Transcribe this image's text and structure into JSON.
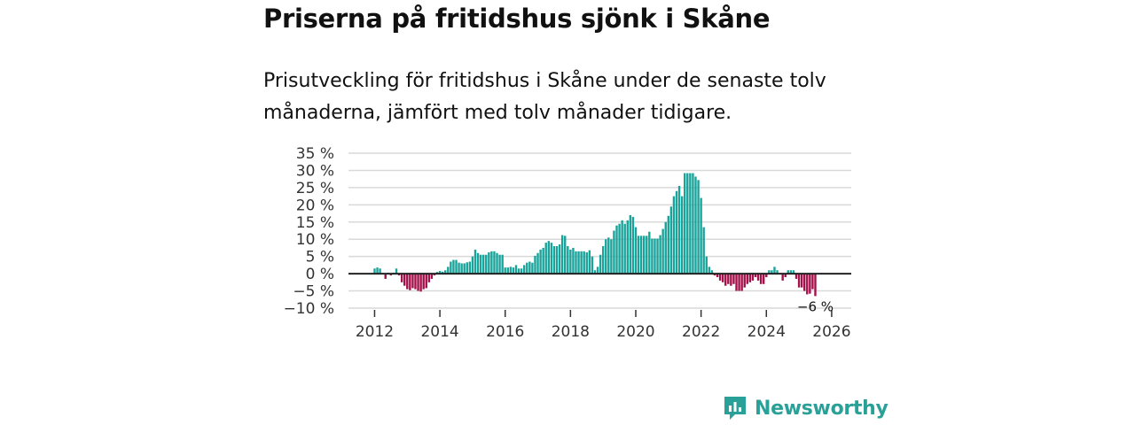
{
  "title": "Priserna på fritidshus sjönk i Skåne",
  "subtitle": "Prisutveckling för fritidshus i Skåne under de senaste tolv månaderna, jämfört med tolv månader tidigare.",
  "brand": {
    "name": "Newsworthy"
  },
  "colors": {
    "positive": "#1aa39a",
    "negative": "#a3104a",
    "grid": "#d9d9d9",
    "zero_line": "#222222"
  },
  "chart_data": {
    "type": "bar",
    "title": "Priserna på fritidshus sjönk i Skåne",
    "xlabel": "",
    "ylabel": "",
    "x_start": 2011.5,
    "x_step": 0.08333,
    "xlim": [
      2011.2,
      2026.6
    ],
    "ylim": [
      -10,
      35
    ],
    "y_ticks": [
      -10,
      -5,
      0,
      5,
      10,
      15,
      20,
      25,
      30,
      35
    ],
    "y_tick_labels": [
      "−10 %",
      "−5 %",
      "0 %",
      "5 %",
      "10 %",
      "15 %",
      "20 %",
      "25 %",
      "30 %",
      "35 %"
    ],
    "x_ticks": [
      2012,
      2014,
      2016,
      2018,
      2020,
      2022,
      2024,
      2026
    ],
    "x_tick_labels": [
      "2012",
      "2014",
      "2016",
      "2018",
      "2020",
      "2022",
      "2024",
      "2026"
    ],
    "values": [
      0,
      0,
      0,
      0,
      0,
      0,
      1.5,
      1.8,
      1.5,
      0.2,
      -1.5,
      0.3,
      -0.5,
      0.3,
      1.5,
      -0.5,
      -2.5,
      -3.5,
      -4.5,
      -4.8,
      -4.2,
      -4.5,
      -5,
      -5.2,
      -4.5,
      -4.2,
      -2.5,
      -1.5,
      -0.5,
      0.5,
      0.8,
      0.6,
      1,
      2,
      3.5,
      4,
      4,
      3.2,
      3,
      3,
      3.3,
      3.5,
      5,
      7,
      6,
      5.5,
      5.5,
      5.5,
      6.2,
      6.5,
      6.5,
      6,
      5.5,
      5.5,
      1.8,
      1.8,
      2,
      1.8,
      2.5,
      1.5,
      1.5,
      2.5,
      3.2,
      3.5,
      3.2,
      5.2,
      6,
      7,
      7.5,
      9,
      9.5,
      9,
      8,
      8,
      8.5,
      11.2,
      11,
      8,
      7,
      7.5,
      6.5,
      6.5,
      6.5,
      6.5,
      6.2,
      6.8,
      5,
      1,
      2,
      5.5,
      8,
      10,
      10.5,
      10,
      12.5,
      14,
      14.5,
      15.5,
      14.5,
      15.5,
      17,
      16.5,
      13.5,
      11,
      11,
      11,
      11,
      12.2,
      10.2,
      10.2,
      10.2,
      11.2,
      13,
      15,
      16.8,
      19.5,
      22.5,
      24,
      25.5,
      22.5,
      29.2,
      29.2,
      29.2,
      29.2,
      28.2,
      27.2,
      22,
      13.5,
      5,
      2,
      1,
      -0.5,
      -1,
      -2,
      -2.5,
      -3.5,
      -3,
      -3.5,
      -3,
      -5,
      -5,
      -5,
      -4,
      -3,
      -2.5,
      -2,
      -1,
      -2,
      -3,
      -3,
      -1,
      1,
      1,
      2,
      1,
      0,
      -2,
      -1,
      1,
      1,
      1,
      -1.5,
      -4,
      -4,
      -5,
      -6,
      -5.8,
      -4.5,
      -6.5
    ],
    "last_value_label": "−6 %"
  }
}
